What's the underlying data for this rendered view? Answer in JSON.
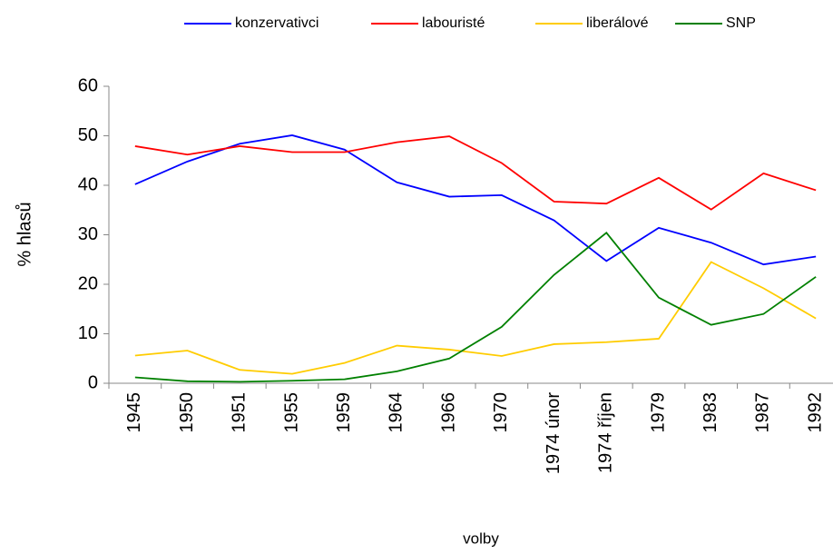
{
  "chart_data": {
    "type": "line",
    "categories": [
      "1945",
      "1950",
      "1951",
      "1955",
      "1959",
      "1964",
      "1966",
      "1970",
      "1974 únor",
      "1974 říjen",
      "1979",
      "1983",
      "1987",
      "1992"
    ],
    "series": [
      {
        "name": "konzervativci",
        "color": "#0000ff",
        "values": [
          40.2,
          44.8,
          48.4,
          50.1,
          47.2,
          40.6,
          37.7,
          38.0,
          32.9,
          24.7,
          31.4,
          28.4,
          24.0,
          25.6
        ]
      },
      {
        "name": "labouristé",
        "color": "#ff0000",
        "values": [
          47.9,
          46.2,
          47.9,
          46.7,
          46.7,
          48.7,
          49.9,
          44.5,
          36.7,
          36.3,
          41.5,
          35.1,
          42.4,
          39.0
        ]
      },
      {
        "name": "liberálové",
        "color": "#ffcc00",
        "values": [
          5.6,
          6.6,
          2.7,
          1.9,
          4.1,
          7.6,
          6.8,
          5.5,
          7.9,
          8.3,
          9.0,
          24.5,
          19.2,
          13.1
        ]
      },
      {
        "name": "SNP",
        "color": "#008000",
        "values": [
          1.2,
          0.4,
          0.3,
          0.5,
          0.8,
          2.4,
          5.0,
          11.4,
          21.9,
          30.4,
          17.3,
          11.8,
          14.0,
          21.5
        ]
      }
    ],
    "xlabel": "volby",
    "ylabel": "% hlasů",
    "ylim": [
      0,
      60
    ],
    "yticks": [
      0,
      10,
      20,
      30,
      40,
      50,
      60
    ],
    "grid": false,
    "legend": "top"
  }
}
